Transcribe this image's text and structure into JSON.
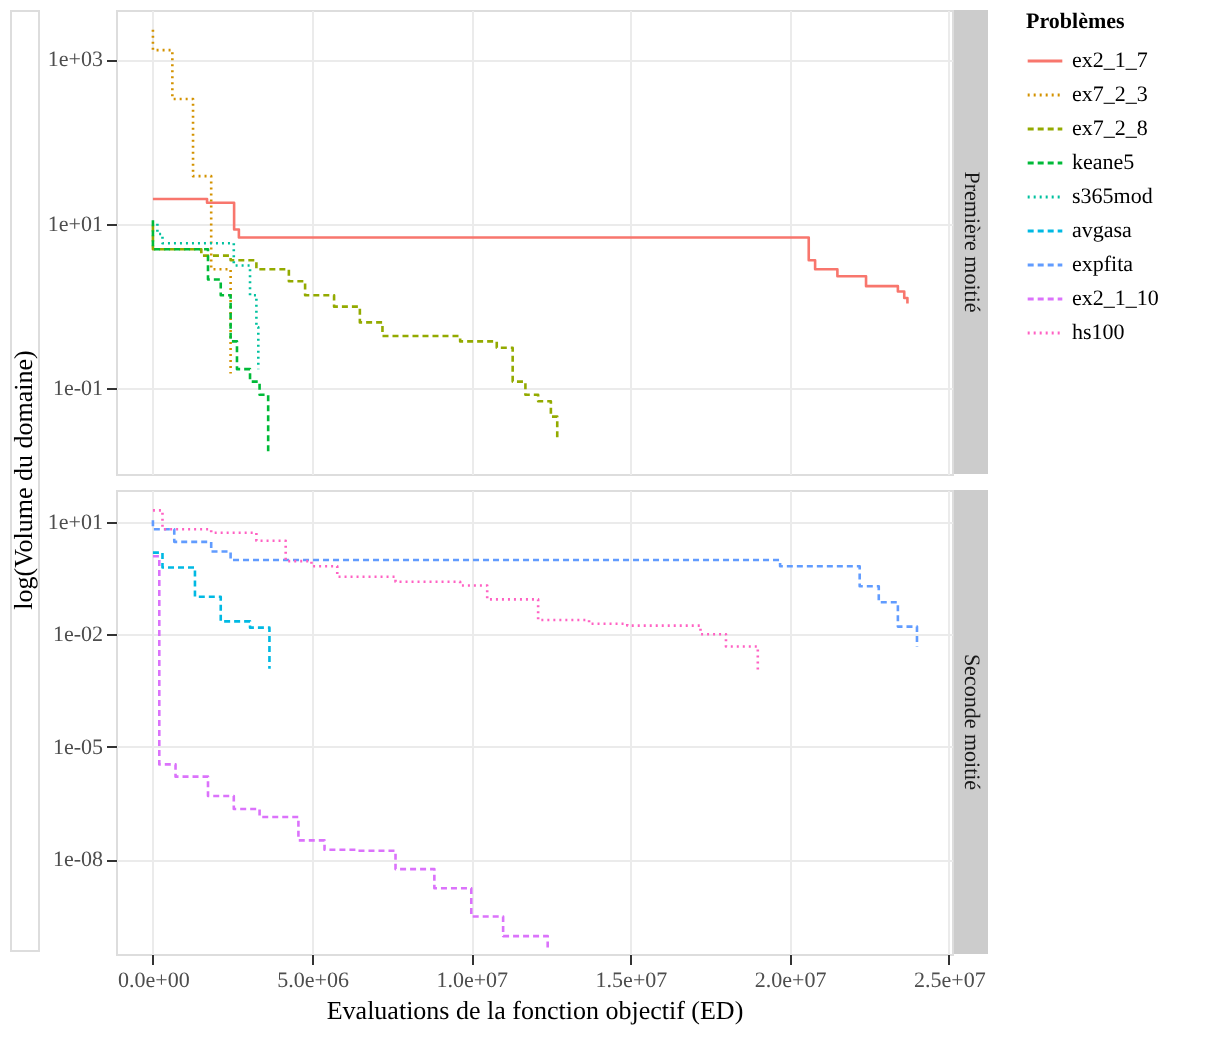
{
  "chart_data": [
    {
      "type": "step",
      "title": "Première moitié",
      "ylabel": "log(Volume du domaine)",
      "legend_title": "Problèmes",
      "legend": "right",
      "log": "y",
      "grid": true,
      "tick_labels": "y",
      "xlim": [
        -1160000,
        25100000
      ],
      "xticks": [
        0,
        5000000,
        10000000,
        15000000,
        20000000,
        25000000
      ],
      "ylim": [
        0.009,
        4000
      ],
      "yticks": [
        {
          "value": 1000,
          "label": "1e+03"
        },
        {
          "value": 10,
          "label": "1e+01"
        },
        {
          "value": 0.1,
          "label": "1e-01"
        }
      ],
      "series": [
        {
          "name": "ex2_1_7",
          "color": "#f8766d",
          "line_style": "solid",
          "x": [
            0,
            1700000,
            2550000,
            2700000,
            20600000,
            20800000,
            21500000,
            22400000,
            23400000,
            23600000,
            23700000
          ],
          "values": [
            20,
            18,
            8.5,
            6.8,
            3.6,
            2.8,
            2.3,
            1.74,
            1.5,
            1.25,
            1.07
          ]
        },
        {
          "name": "ex7_2_3",
          "color": "#d39200",
          "line_style": "dotted",
          "x": [
            0,
            0,
            610000,
            1260000,
            1830000,
            2440000,
            2440000
          ],
          "values": [
            2300,
            1300,
            330,
            38,
            2.8,
            0.37,
            0.15
          ]
        },
        {
          "name": "ex7_2_8",
          "color": "#93aa00",
          "line_style": "dashed",
          "x": [
            0,
            0,
            1520000,
            2440000,
            3250000,
            4270000,
            4780000,
            5690000,
            6500000,
            7210000,
            9650000,
            10800000,
            11300000,
            11700000,
            12100000,
            12500000,
            12700000
          ],
          "values": [
            9.5,
            4.9,
            4.1,
            3.6,
            2.8,
            2.0,
            1.35,
            0.98,
            0.63,
            0.43,
            0.37,
            0.31,
            0.12,
            0.083,
            0.069,
            0.045,
            0.024
          ]
        },
        {
          "name": "keane5",
          "color": "#00ba38",
          "line_style": "dashed",
          "x": [
            0,
            0,
            1730000,
            2130000,
            2440000,
            2640000,
            3050000,
            3350000,
            3620000
          ],
          "values": [
            11,
            4.9,
            2.1,
            1.35,
            0.37,
            0.17,
            0.12,
            0.083,
            0.017
          ]
        },
        {
          "name": "s365mod",
          "color": "#00c19f",
          "line_style": "dotted",
          "x": [
            140000,
            140000,
            300000,
            2540000,
            3050000,
            3250000,
            3310000
          ],
          "values": [
            10,
            7.5,
            5.8,
            3.1,
            1.35,
            0.55,
            0.17
          ]
        }
      ]
    },
    {
      "type": "step",
      "title": "Seconde moitié",
      "xlabel": "Evaluations de la fonction objectif (ED)",
      "legend": "right",
      "log": "y",
      "grid": true,
      "xlim": [
        -1160000,
        25100000
      ],
      "xticks": [
        {
          "value": 0,
          "label": "0.0e+00"
        },
        {
          "value": 5000000,
          "label": "5.0e+06"
        },
        {
          "value": 10000000,
          "label": "1.0e+07"
        },
        {
          "value": 15000000,
          "label": "1.5e+07"
        },
        {
          "value": 20000000,
          "label": "2.0e+07"
        },
        {
          "value": 25000000,
          "label": "2.5e+07"
        }
      ],
      "ylim": [
        3e-11,
        70
      ],
      "yticks": [
        {
          "value": 10,
          "label": "1e+01"
        },
        {
          "value": 0.01,
          "label": "1e-02"
        },
        {
          "value": 1e-05,
          "label": "1e-05"
        },
        {
          "value": 1e-08,
          "label": "1e-08"
        }
      ],
      "series": [
        {
          "name": "avgasa",
          "color": "#00b9e3",
          "line_style": "dashed",
          "x": [
            0,
            300000,
            1320000,
            2130000,
            3050000,
            3660000
          ],
          "values": [
            1.5,
            0.6,
            0.1,
            0.022,
            0.015,
            0.0012
          ]
        },
        {
          "name": "expfita",
          "color": "#619cff",
          "line_style": "dashed",
          "x": [
            0,
            0,
            670000,
            1830000,
            2440000,
            19700000,
            22200000,
            22800000,
            23400000,
            24000000
          ],
          "values": [
            11,
            6.3,
            2.9,
            1.6,
            0.95,
            0.65,
            0.19,
            0.071,
            0.016,
            0.0047
          ]
        },
        {
          "name": "ex2_1_10",
          "color": "#db72fb",
          "line_style": "dashed",
          "x": [
            0,
            200000,
            710000,
            1730000,
            2540000,
            3350000,
            4570000,
            5390000,
            6400000,
            7620000,
            8840000,
            10000000,
            11000000,
            12400000
          ],
          "values": [
            1.2,
            3.4e-06,
            1.6e-06,
            4.9e-07,
            2.2e-07,
            1.35e-07,
            3.2e-08,
            1.8e-08,
            1.7e-08,
            5.5e-09,
            1.7e-09,
            3e-10,
            9e-11,
            4.3e-11
          ]
        },
        {
          "name": "hs100",
          "color": "#ff61c3",
          "line_style": "dotted",
          "x": [
            0,
            300000,
            1830000,
            3250000,
            4170000,
            4980000,
            5790000,
            7620000,
            9650000,
            10500000,
            12100000,
            13700000,
            14900000,
            17200000,
            18000000,
            19000000
          ],
          "values": [
            20,
            6.3,
            5.1,
            3.1,
            0.89,
            0.65,
            0.34,
            0.25,
            0.2,
            0.085,
            0.024,
            0.019,
            0.017,
            0.01,
            0.0047,
            0.0011
          ]
        }
      ]
    }
  ]
}
